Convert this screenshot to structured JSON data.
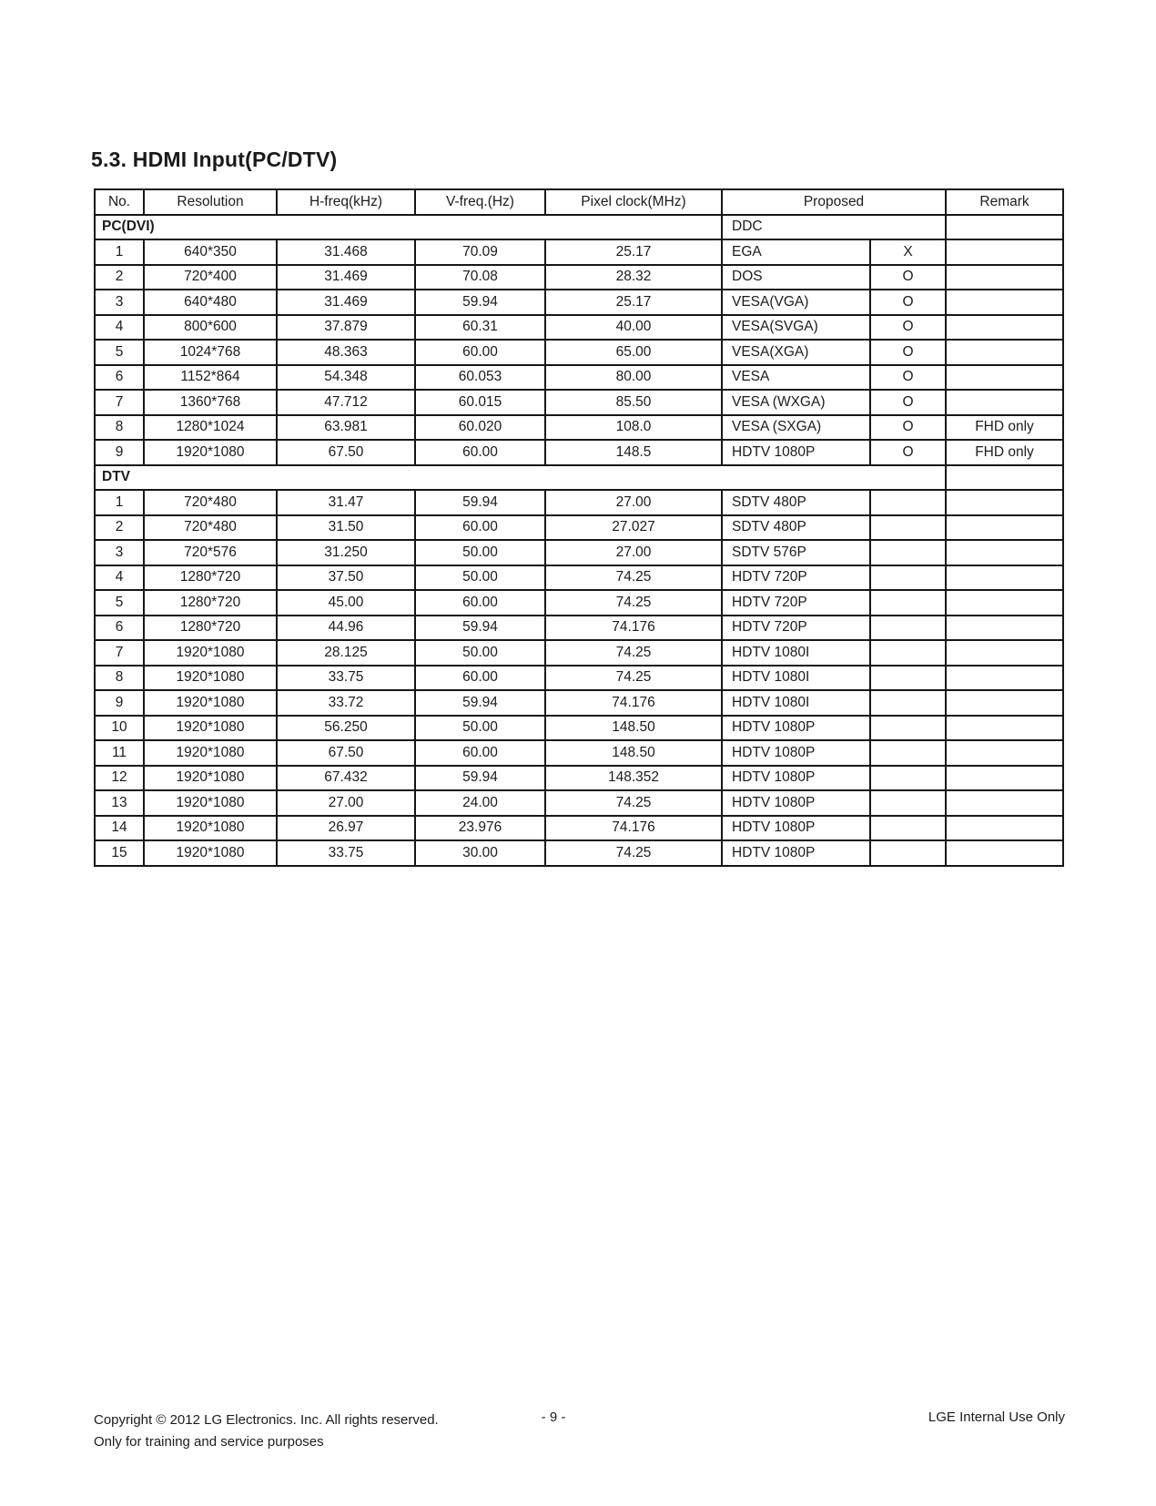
{
  "page": {
    "title": "5.3. HDMI Input(PC/DTV)"
  },
  "table": {
    "headers": {
      "no": "No.",
      "resolution": "Resolution",
      "h_freq": "H-freq(kHz)",
      "v_freq": "V-freq.(Hz)",
      "pixel_clock": "Pixel clock(MHz)",
      "proposed": "Proposed",
      "remark": "Remark"
    },
    "sections": [
      {
        "label": "PC(DVI)",
        "sublabel": "DDC",
        "rows": [
          {
            "no": "1",
            "resolution": "640*350",
            "h": "31.468",
            "v": "70.09",
            "pixel": "25.17",
            "proposed": "EGA",
            "mark": "X",
            "remark": ""
          },
          {
            "no": "2",
            "resolution": "720*400",
            "h": "31.469",
            "v": "70.08",
            "pixel": "28.32",
            "proposed": "DOS",
            "mark": "O",
            "remark": ""
          },
          {
            "no": "3",
            "resolution": "640*480",
            "h": "31.469",
            "v": "59.94",
            "pixel": "25.17",
            "proposed": "VESA(VGA)",
            "mark": "O",
            "remark": ""
          },
          {
            "no": "4",
            "resolution": "800*600",
            "h": "37.879",
            "v": "60.31",
            "pixel": "40.00",
            "proposed": "VESA(SVGA)",
            "mark": "O",
            "remark": ""
          },
          {
            "no": "5",
            "resolution": "1024*768",
            "h": "48.363",
            "v": "60.00",
            "pixel": "65.00",
            "proposed": "VESA(XGA)",
            "mark": "O",
            "remark": ""
          },
          {
            "no": "6",
            "resolution": "1152*864",
            "h": "54.348",
            "v": "60.053",
            "pixel": "80.00",
            "proposed": "VESA",
            "mark": "O",
            "remark": ""
          },
          {
            "no": "7",
            "resolution": "1360*768",
            "h": "47.712",
            "v": "60.015",
            "pixel": "85.50",
            "proposed": "VESA (WXGA)",
            "mark": "O",
            "remark": ""
          },
          {
            "no": "8",
            "resolution": "1280*1024",
            "h": "63.981",
            "v": "60.020",
            "pixel": "108.0",
            "proposed": "VESA (SXGA)",
            "mark": "O",
            "remark": "FHD only"
          },
          {
            "no": "9",
            "resolution": "1920*1080",
            "h": "67.50",
            "v": "60.00",
            "pixel": "148.5",
            "proposed": "HDTV 1080P",
            "mark": "O",
            "remark": "FHD only"
          }
        ]
      },
      {
        "label": "DTV",
        "sublabel": "",
        "rows": [
          {
            "no": "1",
            "resolution": "720*480",
            "h": "31.47",
            "v": "59.94",
            "pixel": "27.00",
            "proposed": "SDTV 480P",
            "mark": "",
            "remark": ""
          },
          {
            "no": "2",
            "resolution": "720*480",
            "h": "31.50",
            "v": "60.00",
            "pixel": "27.027",
            "proposed": "SDTV 480P",
            "mark": "",
            "remark": ""
          },
          {
            "no": "3",
            "resolution": "720*576",
            "h": "31.250",
            "v": "50.00",
            "pixel": "27.00",
            "proposed": "SDTV 576P",
            "mark": "",
            "remark": ""
          },
          {
            "no": "4",
            "resolution": "1280*720",
            "h": "37.50",
            "v": "50.00",
            "pixel": "74.25",
            "proposed": "HDTV 720P",
            "mark": "",
            "remark": ""
          },
          {
            "no": "5",
            "resolution": "1280*720",
            "h": "45.00",
            "v": "60.00",
            "pixel": "74.25",
            "proposed": "HDTV 720P",
            "mark": "",
            "remark": ""
          },
          {
            "no": "6",
            "resolution": "1280*720",
            "h": "44.96",
            "v": "59.94",
            "pixel": "74.176",
            "proposed": "HDTV 720P",
            "mark": "",
            "remark": ""
          },
          {
            "no": "7",
            "resolution": "1920*1080",
            "h": "28.125",
            "v": "50.00",
            "pixel": "74.25",
            "proposed": "HDTV 1080I",
            "mark": "",
            "remark": ""
          },
          {
            "no": "8",
            "resolution": "1920*1080",
            "h": "33.75",
            "v": "60.00",
            "pixel": "74.25",
            "proposed": "HDTV 1080I",
            "mark": "",
            "remark": ""
          },
          {
            "no": "9",
            "resolution": "1920*1080",
            "h": "33.72",
            "v": "59.94",
            "pixel": "74.176",
            "proposed": "HDTV 1080I",
            "mark": "",
            "remark": ""
          },
          {
            "no": "10",
            "resolution": "1920*1080",
            "h": "56.250",
            "v": "50.00",
            "pixel": "148.50",
            "proposed": "HDTV 1080P",
            "mark": "",
            "remark": ""
          },
          {
            "no": "11",
            "resolution": "1920*1080",
            "h": "67.50",
            "v": "60.00",
            "pixel": "148.50",
            "proposed": "HDTV 1080P",
            "mark": "",
            "remark": ""
          },
          {
            "no": "12",
            "resolution": "1920*1080",
            "h": "67.432",
            "v": "59.94",
            "pixel": "148.352",
            "proposed": "HDTV 1080P",
            "mark": "",
            "remark": ""
          },
          {
            "no": "13",
            "resolution": "1920*1080",
            "h": "27.00",
            "v": "24.00",
            "pixel": "74.25",
            "proposed": "HDTV 1080P",
            "mark": "",
            "remark": ""
          },
          {
            "no": "14",
            "resolution": "1920*1080",
            "h": "26.97",
            "v": "23.976",
            "pixel": "74.176",
            "proposed": "HDTV 1080P",
            "mark": "",
            "remark": ""
          },
          {
            "no": "15",
            "resolution": "1920*1080",
            "h": "33.75",
            "v": "30.00",
            "pixel": "74.25",
            "proposed": "HDTV 1080P",
            "mark": "",
            "remark": ""
          }
        ]
      }
    ]
  },
  "footer": {
    "copyright": "Copyright  © 2012  LG Electronics. Inc. All rights reserved.",
    "training": "Only for training and service purposes",
    "page_number": "- 9 -",
    "internal": "LGE Internal Use Only"
  }
}
